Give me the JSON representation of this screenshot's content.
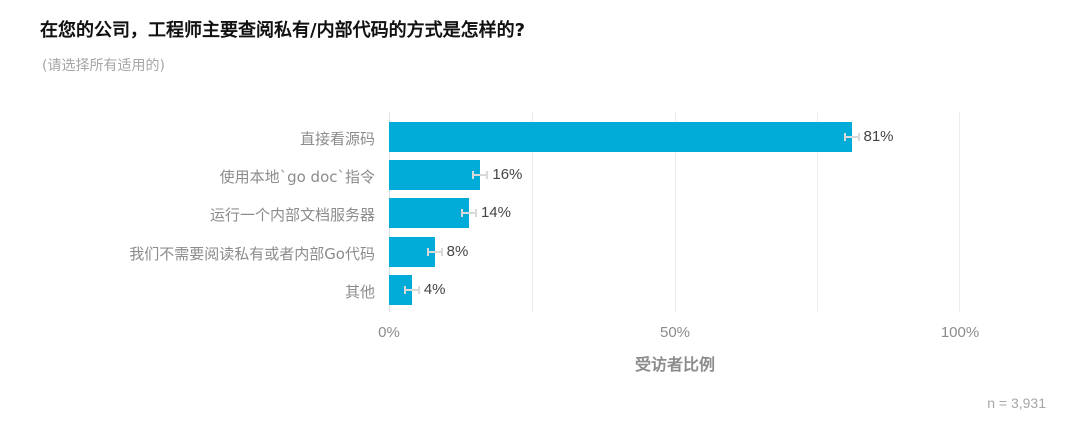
{
  "header": {
    "title": "在您的公司，工程师主要查阅私有/内部代码的方式是怎样的?",
    "subtitle": "(请选择所有适用的)"
  },
  "footer": {
    "n_label": "n =  3,931"
  },
  "colors": {
    "bar": "#00acd7",
    "error_bar": "#d9d9d9",
    "grid": "#ebebeb"
  },
  "chart_data": {
    "type": "bar",
    "orientation": "horizontal",
    "title": "在您的公司，工程师主要查阅私有/内部代码的方式是怎样的?",
    "subtitle": "(请选择所有适用的)",
    "categories": [
      "直接看源码",
      "使用本地`go doc`指令",
      "运行一个内部文档服务器",
      "我们不需要阅读私有或者内部Go代码",
      "其他"
    ],
    "values": [
      81,
      16,
      14,
      8,
      4
    ],
    "value_labels": [
      "81%",
      "16%",
      "14%",
      "8%",
      "4%"
    ],
    "error_bars": true,
    "xlabel": "受访者比例",
    "ylabel": "",
    "xlim": [
      0,
      100
    ],
    "x_ticks": [
      "0%",
      "50%",
      "100%"
    ],
    "grid": {
      "vertical": [
        0,
        25,
        50,
        75,
        100
      ]
    },
    "legend": null,
    "annotation": "n =  3,931"
  }
}
